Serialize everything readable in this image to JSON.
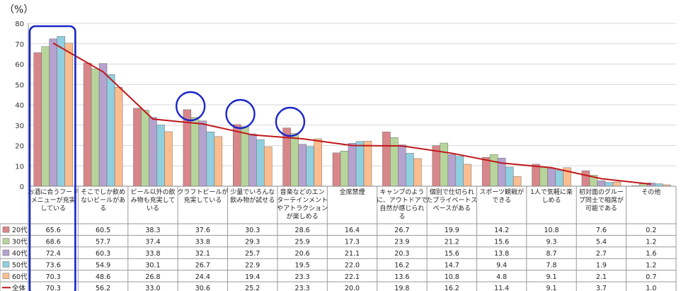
{
  "chart_data": {
    "type": "bar",
    "unit_label": "（%）",
    "ylim": [
      0,
      80
    ],
    "yticks": [
      0,
      10,
      20,
      30,
      40,
      50,
      60,
      70,
      80
    ],
    "grid": true,
    "categories": [
      [
        "お酒に合うフード",
        "メニューが充実",
        "している"
      ],
      [
        "そこでしか飲め",
        "ないビールがあ",
        "る"
      ],
      [
        "ビール以外の飲",
        "み物も充実して",
        "いる"
      ],
      [
        "クラフトビールが",
        "充実している"
      ],
      [
        "少量でいろんな",
        "飲み物が試せる"
      ],
      [
        "音楽などのエン",
        "ターテインメント",
        "やアトラクション",
        "が楽しめる"
      ],
      [
        "全席禁煙"
      ],
      [
        "キャンプのよう",
        "に、アウトドアで",
        "自然が感じられ",
        "る"
      ],
      [
        "個別で仕切られ",
        "たプライベートス",
        "ペースがある"
      ],
      [
        "スポーツ観戦が",
        "できる"
      ],
      [
        "1人で気軽に楽",
        "しめる"
      ],
      [
        "初対面のグルー",
        "プ同士で相席が",
        "可能である"
      ],
      [
        "その他"
      ]
    ],
    "series": [
      {
        "name": "20代",
        "color": "#d9868a",
        "values": [
          65.6,
          60.5,
          38.3,
          37.6,
          30.3,
          28.6,
          16.4,
          26.7,
          19.9,
          14.2,
          10.8,
          7.6,
          0.2
        ]
      },
      {
        "name": "30代",
        "color": "#b7d59a",
        "values": [
          68.6,
          57.7,
          37.4,
          33.8,
          29.3,
          25.9,
          17.3,
          23.9,
          21.2,
          15.6,
          9.3,
          5.4,
          1.2
        ]
      },
      {
        "name": "40代",
        "color": "#b4a2cf",
        "values": [
          72.4,
          60.3,
          33.8,
          32.1,
          25.7,
          20.6,
          21.1,
          20.3,
          15.6,
          13.8,
          8.7,
          2.7,
          1.6
        ]
      },
      {
        "name": "50代",
        "color": "#8fcfe0",
        "values": [
          73.6,
          54.9,
          30.1,
          26.7,
          22.9,
          19.5,
          22.0,
          16.2,
          14.7,
          9.4,
          7.8,
          1.9,
          1.2
        ]
      },
      {
        "name": "60代",
        "color": "#fbbd8f",
        "values": [
          70.3,
          48.6,
          26.8,
          24.4,
          19.4,
          23.3,
          22.1,
          13.6,
          10.8,
          4.8,
          9.1,
          2.1,
          0.7
        ]
      }
    ],
    "line_series": {
      "name": "全体",
      "color": "#c0181b",
      "values": [
        70.3,
        56.2,
        33.0,
        30.6,
        25.2,
        23.3,
        20.0,
        19.8,
        16.2,
        11.4,
        9.1,
        3.7,
        1.0
      ]
    },
    "highlight_rect_category": 0,
    "highlight_circles": [
      3,
      4,
      5
    ],
    "highlight_color": "#1a25c8"
  }
}
